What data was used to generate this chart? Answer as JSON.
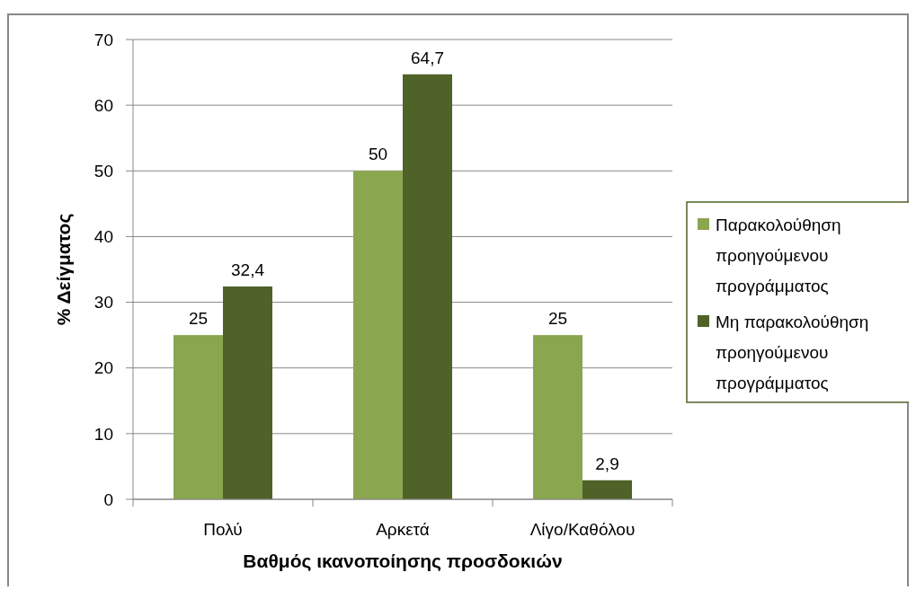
{
  "chart_data": {
    "type": "bar",
    "xlabel": "Βαθμός ικανοποίησης προσδοκιών",
    "ylabel": "% Δείγματος",
    "categories": [
      "Πολύ",
      "Αρκετά",
      "Λίγο/Καθόλου"
    ],
    "series": [
      {
        "name": "Παρακολούθηση προηγούμενου προγράμματος",
        "color": "#8aa64f",
        "values": [
          25,
          50,
          25
        ],
        "value_labels": [
          "25",
          "50",
          "25"
        ]
      },
      {
        "name": "Μη παρακολούθηση προηγούμενου προγράμματος",
        "color": "#4f6228",
        "values": [
          32.4,
          64.7,
          2.9
        ],
        "value_labels": [
          "32,4",
          "64,7",
          "2,9"
        ]
      }
    ],
    "ylim": [
      0,
      70
    ],
    "yticks": [
      0,
      10,
      20,
      30,
      40,
      50,
      60,
      70
    ],
    "grid": "y",
    "legend": "right"
  }
}
